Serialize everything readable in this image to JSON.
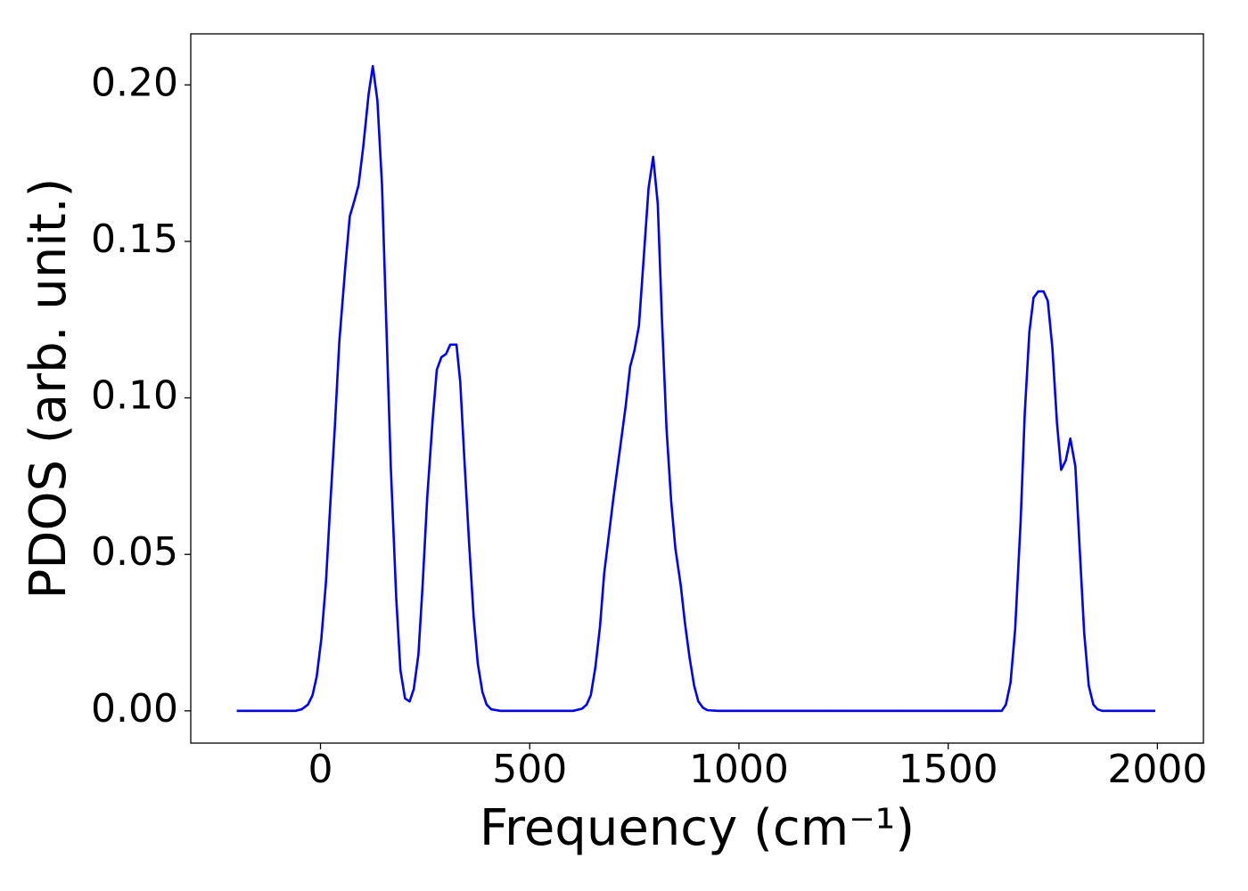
{
  "chart_data": {
    "type": "line",
    "xlabel": "Frequency (cm⁻¹)",
    "ylabel": "PDOS (arb. unit.)",
    "color": "#0000ff",
    "x": [
      -200,
      -150,
      -100,
      -60,
      -45,
      -30,
      -19,
      -9,
      2,
      13,
      23,
      34,
      45,
      60,
      70,
      81,
      91,
      102,
      115,
      125,
      136,
      147,
      157,
      168,
      181,
      191,
      202,
      213,
      223,
      234,
      244,
      255,
      268,
      278,
      289,
      300,
      310,
      325,
      334,
      344,
      355,
      366,
      376,
      387,
      397,
      408,
      430,
      500,
      604,
      625,
      636,
      646,
      657,
      668,
      678,
      689,
      700,
      714,
      729,
      740,
      750,
      761,
      771,
      784,
      795,
      806,
      816,
      827,
      838,
      848,
      861,
      871,
      882,
      893,
      903,
      914,
      925,
      950,
      1200,
      1600,
      1628,
      1638,
      1649,
      1660,
      1673,
      1683,
      1694,
      1704,
      1715,
      1728,
      1738,
      1749,
      1760,
      1770,
      1781,
      1792,
      1804,
      1815,
      1825,
      1836,
      1847,
      1857,
      1868,
      1900,
      1995
    ],
    "values": [
      0,
      0,
      0,
      0,
      0.0005,
      0.002,
      0.005,
      0.011,
      0.023,
      0.041,
      0.065,
      0.09,
      0.118,
      0.143,
      0.158,
      0.163,
      0.168,
      0.18,
      0.197,
      0.206,
      0.195,
      0.168,
      0.125,
      0.078,
      0.036,
      0.013,
      0.004,
      0.003,
      0.007,
      0.018,
      0.04,
      0.068,
      0.093,
      0.109,
      0.113,
      0.114,
      0.117,
      0.117,
      0.105,
      0.08,
      0.054,
      0.03,
      0.015,
      0.006,
      0.002,
      0.0005,
      0,
      0,
      0,
      0.0007,
      0.002,
      0.005,
      0.014,
      0.027,
      0.044,
      0.056,
      0.068,
      0.082,
      0.097,
      0.11,
      0.115,
      0.123,
      0.142,
      0.167,
      0.177,
      0.162,
      0.125,
      0.09,
      0.067,
      0.052,
      0.04,
      0.028,
      0.017,
      0.008,
      0.003,
      0.001,
      0.0002,
      0,
      0,
      0,
      0,
      0.002,
      0.009,
      0.026,
      0.06,
      0.095,
      0.121,
      0.132,
      0.134,
      0.134,
      0.131,
      0.116,
      0.092,
      0.077,
      0.08,
      0.087,
      0.078,
      0.05,
      0.025,
      0.008,
      0.002,
      0.0005,
      0,
      0,
      0
    ],
    "xlim": [
      -310,
      2110
    ],
    "ylim": [
      -0.0103,
      0.2163
    ],
    "xticks": [
      0,
      500,
      1000,
      1500,
      2000
    ],
    "yticks": [
      {
        "value": 0,
        "label": "0.00"
      },
      {
        "value": 0.05,
        "label": "0.05"
      },
      {
        "value": 0.1,
        "label": "0.10"
      },
      {
        "value": 0.15,
        "label": "0.15"
      },
      {
        "value": 0.2,
        "label": "0.20"
      }
    ]
  }
}
